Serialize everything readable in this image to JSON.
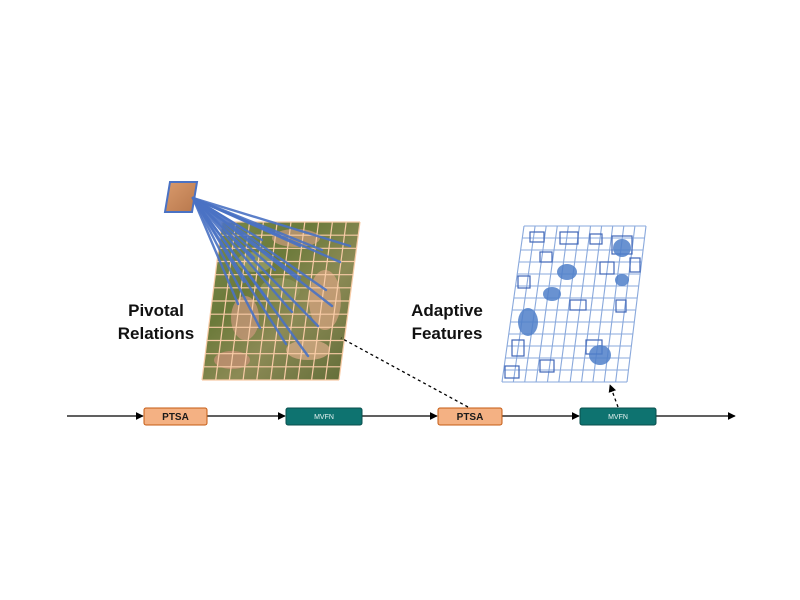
{
  "labels": {
    "pivotal_line1": "Pivotal",
    "pivotal_line2": "Relations",
    "adaptive_line1": "Adaptive",
    "adaptive_line2": "Features"
  },
  "pipeline": {
    "blocks": [
      {
        "id": "ptsa-1",
        "label": "PTSA",
        "kind": "ptsa"
      },
      {
        "id": "mvfn-1",
        "label": "MVFN",
        "kind": "mvfn"
      },
      {
        "id": "ptsa-2",
        "label": "PTSA",
        "kind": "ptsa"
      },
      {
        "id": "mvfn-2",
        "label": "MVFN",
        "kind": "mvfn"
      }
    ]
  },
  "colors": {
    "ptsa_fill": "#f4b183",
    "ptsa_stroke": "#c55a11",
    "mvfn_fill": "#0e7370",
    "mvfn_stroke": "#094f4d",
    "relation_lines": "#4a72c4",
    "grid_orange": "#f8cba6",
    "grid_blue": "#8aa9dc",
    "arrow": "#000000"
  }
}
